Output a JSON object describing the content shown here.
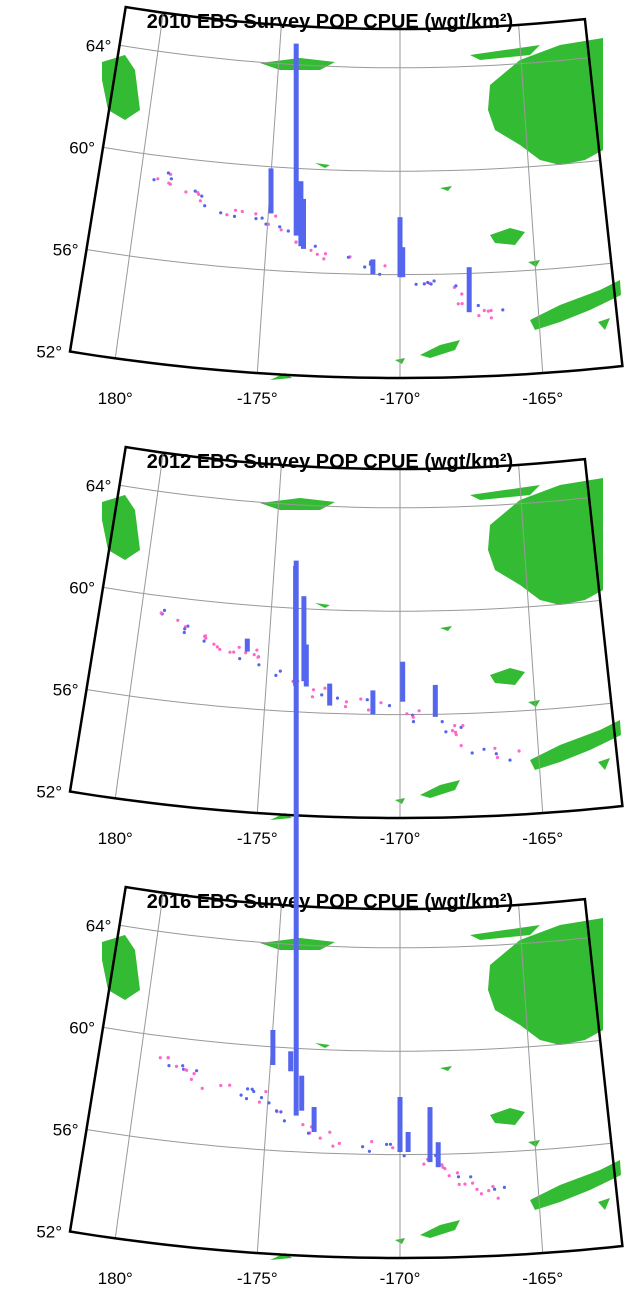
{
  "panels": [
    {
      "title": "2010 EBS Survey POP CPUE (wgt/km²)",
      "stations": [
        {
          "lon": -173.9,
          "lat": 57.4,
          "cpue": 192
        },
        {
          "lon": -174.9,
          "lat": 58.2,
          "cpue": 45
        },
        {
          "lon": -173.7,
          "lat": 57.0,
          "cpue": 65
        },
        {
          "lon": -173.6,
          "lat": 56.9,
          "cpue": 50
        },
        {
          "lon": -170.0,
          "lat": 55.9,
          "cpue": 60
        },
        {
          "lon": -169.9,
          "lat": 55.9,
          "cpue": 30
        },
        {
          "lon": -167.5,
          "lat": 54.5,
          "cpue": 45
        },
        {
          "lon": -171.0,
          "lat": 56.0,
          "cpue": 15
        }
      ]
    },
    {
      "title": "2012 EBS Survey POP CPUE (wgt/km²)",
      "stations": [
        {
          "lon": -173.9,
          "lat": 57.0,
          "cpue": 120
        },
        {
          "lon": -173.6,
          "lat": 57.2,
          "cpue": 85
        },
        {
          "lon": -173.5,
          "lat": 57.0,
          "cpue": 42
        },
        {
          "lon": -172.6,
          "lat": 56.3,
          "cpue": 22
        },
        {
          "lon": -171.0,
          "lat": 56.0,
          "cpue": 24
        },
        {
          "lon": -169.9,
          "lat": 56.5,
          "cpue": 40
        },
        {
          "lon": -168.7,
          "lat": 55.9,
          "cpue": 32
        },
        {
          "lon": -175.8,
          "lat": 58.2,
          "cpue": 13
        }
      ]
    },
    {
      "title": "2016 EBS Survey POP CPUE (wgt/km²)",
      "stations": [
        {
          "lon": -173.9,
          "lat": 57.4,
          "cpue": 555
        },
        {
          "lon": -174.9,
          "lat": 59.3,
          "cpue": 35
        },
        {
          "lon": -174.2,
          "lat": 59.1,
          "cpue": 20
        },
        {
          "lon": -173.7,
          "lat": 57.6,
          "cpue": 35
        },
        {
          "lon": -173.2,
          "lat": 56.8,
          "cpue": 25
        },
        {
          "lon": -170.0,
          "lat": 56.1,
          "cpue": 55
        },
        {
          "lon": -168.9,
          "lat": 55.7,
          "cpue": 55
        },
        {
          "lon": -168.6,
          "lat": 55.5,
          "cpue": 25
        },
        {
          "lon": -169.7,
          "lat": 56.1,
          "cpue": 20
        }
      ]
    }
  ],
  "lon_range": [
    -181.6,
    -162.2
  ],
  "lat_range": [
    52,
    65.5
  ],
  "lat_ticks": [
    {
      "value": 64,
      "label": "64°"
    },
    {
      "value": 60,
      "label": "60°"
    },
    {
      "value": 56,
      "label": "56°"
    },
    {
      "value": 52,
      "label": "52°"
    }
  ],
  "lon_ticks": [
    {
      "value": -180,
      "label": "180°"
    },
    {
      "value": -175,
      "label": "-175°"
    },
    {
      "value": -170,
      "label": "-170°"
    },
    {
      "value": -165,
      "label": "-165°"
    }
  ]
}
